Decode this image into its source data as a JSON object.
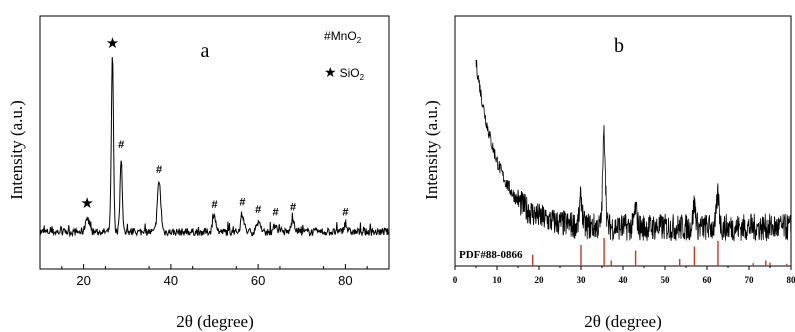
{
  "chart_data": [
    {
      "type": "line",
      "panel_label": "a",
      "xlabel": "2θ (degree)",
      "ylabel": "Intensity (a.u.)",
      "xlim": [
        10,
        90
      ],
      "x_ticks": [
        20,
        40,
        60,
        80
      ],
      "tick_labels": [
        "20",
        "40",
        "60",
        "80"
      ],
      "line_color": "#000000",
      "legend": [
        {
          "symbol": "#",
          "text": "MnO",
          "subscript": "2"
        },
        {
          "symbol": "★",
          "text": "SiO",
          "subscript": "2"
        }
      ],
      "annotations": [
        {
          "symbol": "★",
          "x": 20.8
        },
        {
          "symbol": "★",
          "x": 26.6
        },
        {
          "symbol": "#",
          "x": 28.6
        },
        {
          "symbol": "#",
          "x": 37.3
        },
        {
          "symbol": "#",
          "x": 50.0
        },
        {
          "symbol": "#",
          "x": 56.4
        },
        {
          "symbol": "#",
          "x": 60.0
        },
        {
          "symbol": "#",
          "x": 64.0
        },
        {
          "symbol": "#",
          "x": 68.0
        },
        {
          "symbol": "#",
          "x": 80.0
        }
      ],
      "peaks": [
        {
          "x": 20.8,
          "y": 0.06
        },
        {
          "x": 26.6,
          "y": 0.7
        },
        {
          "x": 28.6,
          "y": 0.3
        },
        {
          "x": 37.3,
          "y": 0.2
        },
        {
          "x": 50.0,
          "y": 0.06
        },
        {
          "x": 56.4,
          "y": 0.07
        },
        {
          "x": 60.0,
          "y": 0.04
        },
        {
          "x": 64.0,
          "y": 0.03
        },
        {
          "x": 68.0,
          "y": 0.05
        },
        {
          "x": 80.0,
          "y": 0.03
        }
      ]
    },
    {
      "type": "line",
      "panel_label": "b",
      "xlabel": "2θ (degree)",
      "ylabel": "Intensity (a.u.)",
      "xlim": [
        0,
        80
      ],
      "x_ticks": [
        0,
        10,
        20,
        30,
        40,
        50,
        60,
        70,
        80
      ],
      "tick_labels": [
        "0",
        "10",
        "20",
        "30",
        "40",
        "50",
        "60",
        "70",
        "80"
      ],
      "line_color": "#000000",
      "peaks": [
        {
          "x": 30.0,
          "y": 0.12
        },
        {
          "x": 35.5,
          "y": 0.4
        },
        {
          "x": 43.0,
          "y": 0.08
        },
        {
          "x": 57.0,
          "y": 0.1
        },
        {
          "x": 62.6,
          "y": 0.14
        }
      ],
      "reference": {
        "label": "PDF#88-0866",
        "color": "#c0392b",
        "lines": [
          {
            "x": 18.5,
            "intensity": 0.4
          },
          {
            "x": 30.0,
            "intensity": 0.75
          },
          {
            "x": 35.5,
            "intensity": 1.0
          },
          {
            "x": 37.2,
            "intensity": 0.2
          },
          {
            "x": 43.0,
            "intensity": 0.55
          },
          {
            "x": 53.5,
            "intensity": 0.25
          },
          {
            "x": 57.0,
            "intensity": 0.7
          },
          {
            "x": 62.6,
            "intensity": 0.9
          },
          {
            "x": 71.0,
            "intensity": 0.1
          },
          {
            "x": 74.0,
            "intensity": 0.2
          },
          {
            "x": 75.0,
            "intensity": 0.12
          },
          {
            "x": 79.0,
            "intensity": 0.08
          }
        ]
      }
    }
  ]
}
